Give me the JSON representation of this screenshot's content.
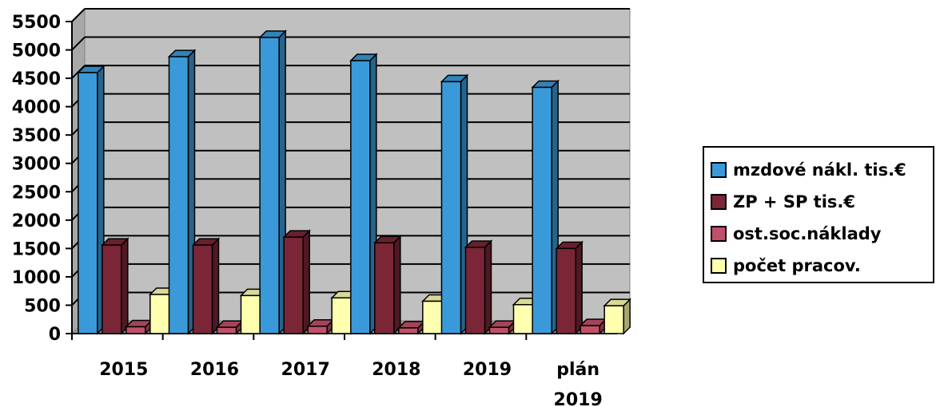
{
  "chart_data": {
    "type": "bar",
    "categories": [
      "2015",
      "2016",
      "2017",
      "2018",
      "2019",
      "plán\n2019"
    ],
    "series": [
      {
        "name": "mzdové nákl. tis.€",
        "color": "#3a9ad9",
        "values": [
          4600,
          4880,
          5220,
          4810,
          4440,
          4340
        ]
      },
      {
        "name": "ZP + SP tis.€",
        "color": "#7a2636",
        "values": [
          1560,
          1560,
          1700,
          1600,
          1520,
          1500
        ]
      },
      {
        "name": "ost.soc.náklady",
        "color": "#c0506a",
        "values": [
          120,
          110,
          130,
          100,
          110,
          140
        ]
      },
      {
        "name": "počet pracov.",
        "color": "#ffffb0",
        "values": [
          690,
          670,
          630,
          570,
          510,
          490
        ]
      }
    ],
    "yticks": [
      "0",
      "500",
      "1000",
      "1500",
      "2000",
      "2500",
      "3000",
      "3500",
      "4000",
      "4500",
      "5000",
      "5500"
    ],
    "ylim": [
      0,
      5500
    ],
    "grid": true,
    "legend": "right",
    "background": "#c0c0c0"
  }
}
